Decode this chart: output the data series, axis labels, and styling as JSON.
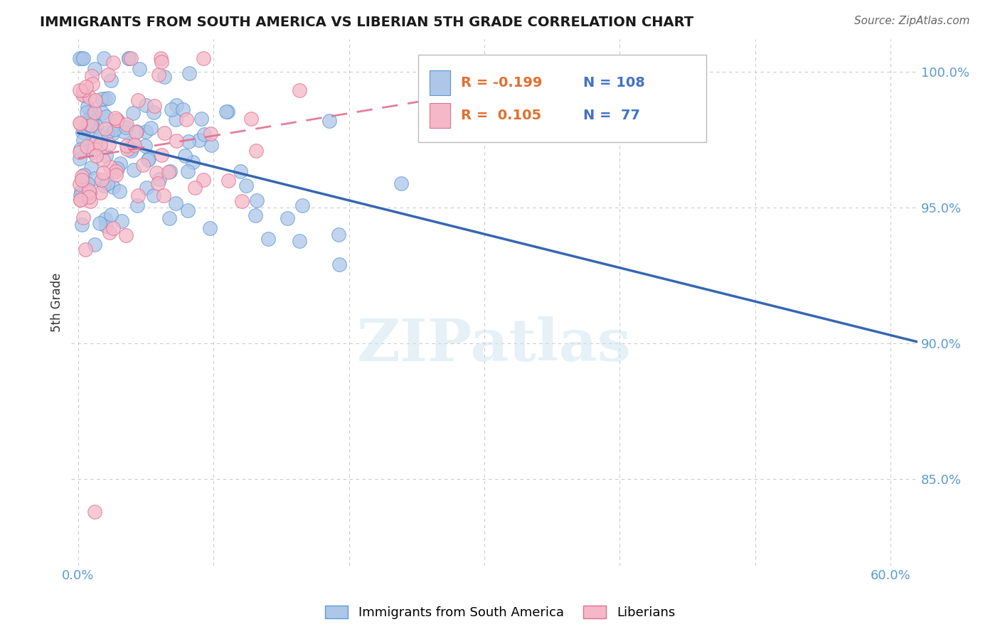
{
  "title": "IMMIGRANTS FROM SOUTH AMERICA VS LIBERIAN 5TH GRADE CORRELATION CHART",
  "source": "Source: ZipAtlas.com",
  "ylabel": "5th Grade",
  "xlim": [
    -0.005,
    0.62
  ],
  "ylim": [
    0.818,
    1.012
  ],
  "xticks": [
    0.0,
    0.1,
    0.2,
    0.3,
    0.4,
    0.5,
    0.6
  ],
  "xticklabels": [
    "0.0%",
    "",
    "",
    "",
    "",
    "",
    "60.0%"
  ],
  "yticks": [
    0.85,
    0.9,
    0.95,
    1.0
  ],
  "yticklabels": [
    "85.0%",
    "90.0%",
    "95.0%",
    "100.0%"
  ],
  "blue_R": -0.199,
  "blue_N": 108,
  "pink_R": 0.105,
  "pink_N": 77,
  "blue_color": "#aec6e8",
  "blue_edge": "#5b9bd5",
  "pink_color": "#f4b8c8",
  "pink_edge": "#e07090",
  "blue_line_color": "#2b5fad",
  "pink_line_color": "#e07090",
  "watermark_text": "ZIPatlas",
  "legend_label_blue": "Immigrants from South America",
  "legend_label_pink": "Liberians",
  "blue_seed": 42,
  "pink_seed": 99,
  "title_color": "#1a1a1a",
  "source_color": "#666666",
  "tick_color": "#5b9bd5",
  "ylabel_color": "#333333",
  "grid_color": "#cccccc",
  "legend_R_color": "#e07030",
  "legend_N_color": "#4472c4"
}
